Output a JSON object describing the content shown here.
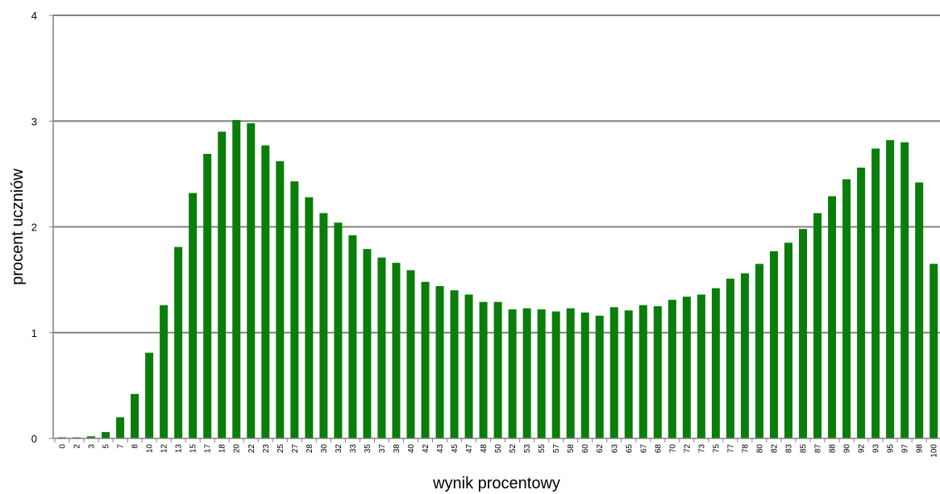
{
  "chart_data": {
    "type": "bar",
    "xlabel": "wynik procentowy",
    "ylabel": "procent uczniów",
    "ylim": [
      0,
      4
    ],
    "yticks": [
      "0",
      "1",
      "2",
      "3",
      "4"
    ],
    "grid": true,
    "bar_color": "#0a7d0a",
    "grid_color": "#808080",
    "categories": [
      "0",
      "2",
      "3",
      "5",
      "7",
      "8",
      "10",
      "12",
      "13",
      "15",
      "17",
      "18",
      "20",
      "22",
      "23",
      "25",
      "27",
      "28",
      "30",
      "32",
      "33",
      "35",
      "37",
      "38",
      "40",
      "42",
      "43",
      "45",
      "47",
      "48",
      "50",
      "52",
      "53",
      "55",
      "57",
      "58",
      "60",
      "62",
      "63",
      "65",
      "67",
      "68",
      "70",
      "72",
      "73",
      "75",
      "77",
      "78",
      "80",
      "82",
      "83",
      "85",
      "87",
      "88",
      "90",
      "92",
      "93",
      "95",
      "97",
      "98",
      "100"
    ],
    "values": [
      0.01,
      0.01,
      0.02,
      0.06,
      0.2,
      0.42,
      0.81,
      1.26,
      1.81,
      2.32,
      2.69,
      2.9,
      3.01,
      2.98,
      2.77,
      2.62,
      2.43,
      2.28,
      2.13,
      2.04,
      1.92,
      1.79,
      1.71,
      1.66,
      1.59,
      1.48,
      1.44,
      1.4,
      1.36,
      1.29,
      1.29,
      1.22,
      1.23,
      1.22,
      1.2,
      1.23,
      1.19,
      1.16,
      1.24,
      1.21,
      1.26,
      1.25,
      1.31,
      1.34,
      1.36,
      1.42,
      1.51,
      1.56,
      1.65,
      1.77,
      1.85,
      1.98,
      2.13,
      2.29,
      2.45,
      2.56,
      2.74,
      2.82,
      2.8,
      2.42,
      1.65
    ]
  }
}
